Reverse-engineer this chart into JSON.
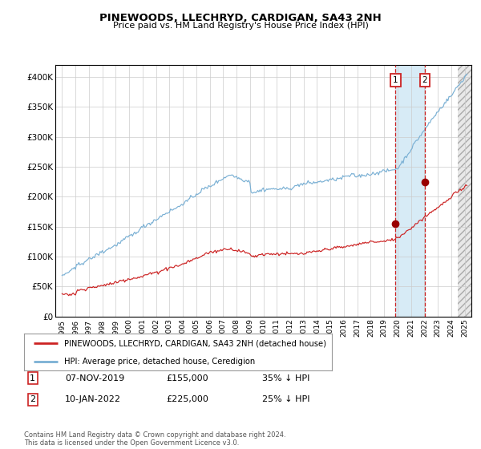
{
  "title": "PINEWOODS, LLECHRYD, CARDIGAN, SA43 2NH",
  "subtitle": "Price paid vs. HM Land Registry's House Price Index (HPI)",
  "ylim": [
    0,
    420000
  ],
  "yticks": [
    0,
    50000,
    100000,
    150000,
    200000,
    250000,
    300000,
    350000,
    400000
  ],
  "ytick_labels": [
    "£0",
    "£50K",
    "£100K",
    "£150K",
    "£200K",
    "£250K",
    "£300K",
    "£350K",
    "£400K"
  ],
  "xlim_start": 1994.5,
  "xlim_end": 2025.5,
  "xticks": [
    1995,
    1996,
    1997,
    1998,
    1999,
    2000,
    2001,
    2002,
    2003,
    2004,
    2005,
    2006,
    2007,
    2008,
    2009,
    2010,
    2011,
    2012,
    2013,
    2014,
    2015,
    2016,
    2017,
    2018,
    2019,
    2020,
    2021,
    2022,
    2023,
    2024,
    2025
  ],
  "red_line_color": "#cc2222",
  "blue_line_color": "#7ab0d4",
  "vline_color": "#cc2222",
  "shade_color": "#d0e8f5",
  "marker_color": "#990000",
  "sale1_x": 2019.85,
  "sale1_y": 155000,
  "sale1_label": "1",
  "sale2_x": 2022.03,
  "sale2_y": 225000,
  "sale2_label": "2",
  "legend_line1": "PINEWOODS, LLECHRYD, CARDIGAN, SA43 2NH (detached house)",
  "legend_line2": "HPI: Average price, detached house, Ceredigion",
  "table_row1_num": "1",
  "table_row1_date": "07-NOV-2019",
  "table_row1_price": "£155,000",
  "table_row1_hpi": "35% ↓ HPI",
  "table_row2_num": "2",
  "table_row2_date": "10-JAN-2022",
  "table_row2_price": "£225,000",
  "table_row2_hpi": "25% ↓ HPI",
  "footer": "Contains HM Land Registry data © Crown copyright and database right 2024.\nThis data is licensed under the Open Government Licence v3.0.",
  "background_color": "#ffffff",
  "plot_bg_color": "#ffffff",
  "grid_color": "#cccccc"
}
